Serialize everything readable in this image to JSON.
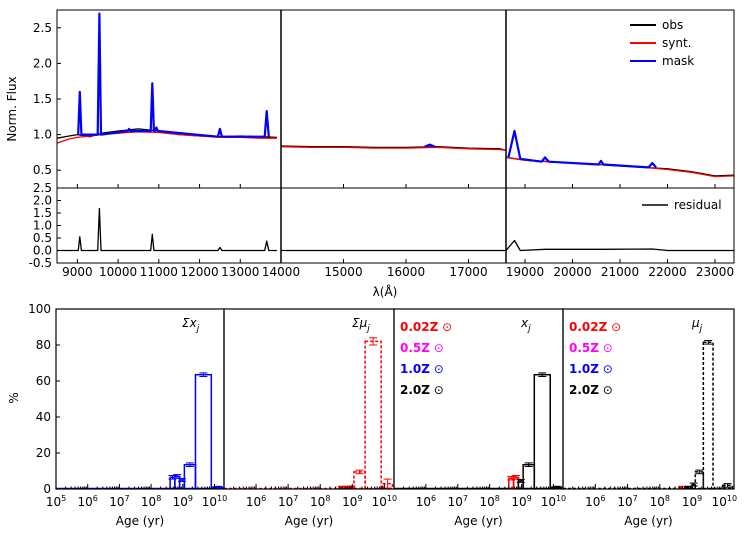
{
  "colors": {
    "obs": "#000000",
    "synt": "#ff0000",
    "mask": "#0000ff",
    "z002": "#ff0000",
    "z05": "#ff00ff",
    "z10": "#0000ff",
    "z20": "#000000"
  },
  "chart_data": [
    {
      "type": "line",
      "panel": "spectrum",
      "ylabel": "Norm. Flux",
      "ylim": [
        0.25,
        2.75
      ],
      "yticks": [
        "0.5",
        "1.0",
        "1.5",
        "2.0",
        "2.5"
      ],
      "segments": [
        {
          "xlim": [
            8500,
            14000
          ],
          "xticks": [
            "9000",
            "10000",
            "11000",
            "12000",
            "13000"
          ]
        },
        {
          "xlim": [
            14000,
            17600
          ],
          "xticks": [
            "14000",
            "15000",
            "16000",
            "17000"
          ]
        },
        {
          "xlim": [
            18600,
            23400
          ],
          "xticks": [
            "19000",
            "20000",
            "21000",
            "22000",
            "23000"
          ]
        }
      ],
      "legend": [
        "obs",
        "synt.",
        "mask"
      ],
      "legend_position": "top-right",
      "series": [
        {
          "name": "obs",
          "segment": 0,
          "points": [
            [
              8500,
              0.95
            ],
            [
              8800,
              0.98
            ],
            [
              9000,
              1.0
            ],
            [
              9300,
              0.97
            ],
            [
              9600,
              1.02
            ],
            [
              10000,
              1.05
            ],
            [
              10500,
              1.08
            ],
            [
              11000,
              1.05
            ],
            [
              11500,
              1.0
            ],
            [
              12000,
              0.98
            ],
            [
              12500,
              0.97
            ],
            [
              13000,
              0.98
            ],
            [
              13500,
              0.97
            ],
            [
              13900,
              0.96
            ]
          ]
        },
        {
          "name": "synt.",
          "segment": 0,
          "points": [
            [
              8500,
              0.88
            ],
            [
              8800,
              0.94
            ],
            [
              9000,
              0.96
            ],
            [
              9300,
              0.98
            ],
            [
              9600,
              1.0
            ],
            [
              10000,
              1.02
            ],
            [
              10500,
              1.04
            ],
            [
              11000,
              1.03
            ],
            [
              11500,
              1.0
            ],
            [
              12000,
              0.98
            ],
            [
              12500,
              0.96
            ],
            [
              13000,
              0.96
            ],
            [
              13500,
              0.95
            ],
            [
              13900,
              0.95
            ]
          ]
        },
        {
          "name": "mask",
          "segment": 0,
          "points": [
            [
              9020,
              1.0
            ],
            [
              9060,
              1.6
            ],
            [
              9100,
              1.0
            ],
            [
              9500,
              1.0
            ],
            [
              9540,
              2.7
            ],
            [
              9580,
              1.0
            ],
            [
              10240,
              1.05
            ],
            [
              10270,
              1.08
            ],
            [
              10300,
              1.05
            ],
            [
              10800,
              1.05
            ],
            [
              10840,
              1.72
            ],
            [
              10880,
              1.05
            ],
            [
              10900,
              1.05
            ],
            [
              10940,
              1.1
            ],
            [
              10980,
              1.05
            ],
            [
              12450,
              0.97
            ],
            [
              12500,
              1.08
            ],
            [
              12550,
              0.97
            ],
            [
              13600,
              0.97
            ],
            [
              13650,
              1.33
            ],
            [
              13700,
              0.97
            ]
          ]
        },
        {
          "name": "obs",
          "segment": 1,
          "points": [
            [
              14000,
              0.84
            ],
            [
              14500,
              0.83
            ],
            [
              15000,
              0.83
            ],
            [
              15500,
              0.82
            ],
            [
              16000,
              0.82
            ],
            [
              16500,
              0.83
            ],
            [
              17000,
              0.81
            ],
            [
              17500,
              0.8
            ],
            [
              17600,
              0.78
            ]
          ]
        },
        {
          "name": "synt.",
          "segment": 1,
          "points": [
            [
              14000,
              0.83
            ],
            [
              14500,
              0.82
            ],
            [
              15000,
              0.82
            ],
            [
              15500,
              0.81
            ],
            [
              16000,
              0.81
            ],
            [
              16500,
              0.82
            ],
            [
              17000,
              0.8
            ],
            [
              17500,
              0.79
            ],
            [
              17600,
              0.78
            ]
          ]
        },
        {
          "name": "mask",
          "segment": 1,
          "points": [
            [
              16300,
              0.83
            ],
            [
              16380,
              0.86
            ],
            [
              16460,
              0.83
            ]
          ]
        },
        {
          "name": "obs",
          "segment": 2,
          "points": [
            [
              18600,
              0.68
            ],
            [
              19000,
              0.64
            ],
            [
              19500,
              0.62
            ],
            [
              20000,
              0.6
            ],
            [
              20500,
              0.58
            ],
            [
              21000,
              0.56
            ],
            [
              21500,
              0.54
            ],
            [
              22000,
              0.52
            ],
            [
              22500,
              0.48
            ],
            [
              23000,
              0.42
            ],
            [
              23400,
              0.43
            ]
          ]
        },
        {
          "name": "synt.",
          "segment": 2,
          "points": [
            [
              18600,
              0.68
            ],
            [
              19000,
              0.64
            ],
            [
              19500,
              0.62
            ],
            [
              20000,
              0.6
            ],
            [
              20500,
              0.58
            ],
            [
              21000,
              0.56
            ],
            [
              21500,
              0.54
            ],
            [
              22000,
              0.51
            ],
            [
              22500,
              0.47
            ],
            [
              23000,
              0.41
            ],
            [
              23400,
              0.42
            ]
          ]
        },
        {
          "name": "mask",
          "segment": 2,
          "points": [
            [
              18650,
              0.68
            ],
            [
              18780,
              1.05
            ],
            [
              18900,
              0.66
            ],
            [
              19350,
              0.62
            ],
            [
              19420,
              0.68
            ],
            [
              19500,
              0.62
            ],
            [
              20550,
              0.58
            ],
            [
              20600,
              0.63
            ],
            [
              20650,
              0.58
            ],
            [
              21600,
              0.54
            ],
            [
              21680,
              0.6
            ],
            [
              21760,
              0.54
            ]
          ]
        }
      ]
    },
    {
      "type": "line",
      "panel": "residual",
      "ylim": [
        -0.5,
        2.5
      ],
      "yticks": [
        "-0.5",
        "0.0",
        "0.5",
        "1.0",
        "1.5",
        "2.0",
        "2.5"
      ],
      "xlabel": "λ(Å)",
      "legend": [
        "residual"
      ],
      "legend_position": "top-right",
      "series": [
        {
          "name": "residual",
          "segment": 0,
          "points": [
            [
              8500,
              0.0
            ],
            [
              9020,
              0.0
            ],
            [
              9060,
              0.55
            ],
            [
              9100,
              0.0
            ],
            [
              9500,
              0.0
            ],
            [
              9540,
              1.68
            ],
            [
              9580,
              0.0
            ],
            [
              10800,
              0.0
            ],
            [
              10840,
              0.65
            ],
            [
              10880,
              0.0
            ],
            [
              12450,
              0.0
            ],
            [
              12500,
              0.12
            ],
            [
              12550,
              0.0
            ],
            [
              13600,
              0.0
            ],
            [
              13650,
              0.38
            ],
            [
              13700,
              0.0
            ],
            [
              13900,
              0.0
            ]
          ]
        },
        {
          "name": "residual",
          "segment": 1,
          "points": [
            [
              14000,
              0.0
            ],
            [
              17600,
              0.0
            ]
          ]
        },
        {
          "name": "residual",
          "segment": 2,
          "points": [
            [
              18600,
              0.0
            ],
            [
              18780,
              0.4
            ],
            [
              18900,
              0.0
            ],
            [
              19420,
              0.05
            ],
            [
              20600,
              0.05
            ],
            [
              21680,
              0.06
            ],
            [
              22000,
              0.0
            ],
            [
              23400,
              0.0
            ]
          ]
        }
      ]
    },
    {
      "type": "bar",
      "panel": "sfh",
      "ylabel": "%",
      "ylim": [
        0,
        100
      ],
      "yticks": [
        "0",
        "20",
        "40",
        "60",
        "80",
        "100"
      ],
      "xlabel": "Age (yr)",
      "xlim_log10": [
        5,
        10.3
      ],
      "xtick_base": "10",
      "xtick_exponents": [
        "5",
        "6",
        "7",
        "8",
        "9",
        "10"
      ],
      "metallicity_labels": [
        "0.02Z",
        "0.5Z",
        "1.0Z",
        "2.0Z"
      ],
      "sun_symbol": "⊙",
      "subpanels": [
        {
          "title": "Σx",
          "title_sub": "j",
          "style": "solid",
          "bars": [
            {
              "metal": "z10",
              "age_log10": [
                8.6,
                8.75
              ],
              "value": 6.5,
              "err": 1.0
            },
            {
              "metal": "z10",
              "age_log10": [
                8.75,
                8.9
              ],
              "value": 7.0,
              "err": 1.0
            },
            {
              "metal": "z10",
              "age_log10": [
                8.9,
                9.05
              ],
              "value": 5.0,
              "err": 0.8
            },
            {
              "metal": "z10",
              "age_log10": [
                9.05,
                9.4
              ],
              "value": 13.5,
              "err": 1.0
            },
            {
              "metal": "z10",
              "age_log10": [
                9.4,
                9.9
              ],
              "value": 63.5,
              "err": 1.0
            },
            {
              "metal": "z10",
              "age_log10": [
                9.95,
                10.25
              ],
              "value": 1.0,
              "err": 0.5
            }
          ]
        },
        {
          "title": "Σμ",
          "title_sub": "j",
          "style": "dashed",
          "bars": [
            {
              "metal": "z002",
              "age_log10": [
                8.6,
                8.75
              ],
              "value": 1.0,
              "err": 0.5
            },
            {
              "metal": "z002",
              "age_log10": [
                8.75,
                8.9
              ],
              "value": 1.0,
              "err": 0.5
            },
            {
              "metal": "z002",
              "age_log10": [
                8.9,
                9.05
              ],
              "value": 1.2,
              "err": 0.5
            },
            {
              "metal": "z002",
              "age_log10": [
                9.05,
                9.4
              ],
              "value": 9.5,
              "err": 1.0
            },
            {
              "metal": "z002",
              "age_log10": [
                9.4,
                9.9
              ],
              "value": 82.0,
              "err": 2.0
            },
            {
              "metal": "z002",
              "age_log10": [
                9.95,
                10.25
              ],
              "value": 3.0,
              "err": 2.5
            }
          ]
        },
        {
          "title": "x",
          "title_sub": "j",
          "style": "solid",
          "bars": [
            {
              "metal": "z002",
              "age_log10": [
                8.6,
                8.75
              ],
              "value": 6.0,
              "err": 1.0
            },
            {
              "metal": "z002",
              "age_log10": [
                8.75,
                8.9
              ],
              "value": 6.5,
              "err": 1.0
            },
            {
              "metal": "z20",
              "age_log10": [
                8.9,
                9.05
              ],
              "value": 4.5,
              "err": 0.8
            },
            {
              "metal": "z20",
              "age_log10": [
                9.05,
                9.4
              ],
              "value": 13.5,
              "err": 1.0
            },
            {
              "metal": "z20",
              "age_log10": [
                9.4,
                9.9
              ],
              "value": 63.5,
              "err": 1.0
            },
            {
              "metal": "z20",
              "age_log10": [
                9.95,
                10.25
              ],
              "value": 1.0,
              "err": 0.5
            }
          ]
        },
        {
          "title": "μ",
          "title_sub": "j",
          "style": "dashed",
          "bars": [
            {
              "metal": "z002",
              "age_log10": [
                8.6,
                8.8
              ],
              "value": 1.0,
              "err": 0.5
            },
            {
              "metal": "z20",
              "age_log10": [
                8.8,
                9.0
              ],
              "value": 1.0,
              "err": 0.5
            },
            {
              "metal": "z20",
              "age_log10": [
                9.0,
                9.1
              ],
              "value": 2.5,
              "err": 0.8
            },
            {
              "metal": "z20",
              "age_log10": [
                9.1,
                9.35
              ],
              "value": 9.5,
              "err": 1.0
            },
            {
              "metal": "z20",
              "age_log10": [
                9.35,
                9.65
              ],
              "value": 81.5,
              "err": 1.0
            },
            {
              "metal": "z20",
              "age_log10": [
                9.95,
                10.25
              ],
              "value": 2.0,
              "err": 1.0
            }
          ]
        }
      ]
    }
  ]
}
